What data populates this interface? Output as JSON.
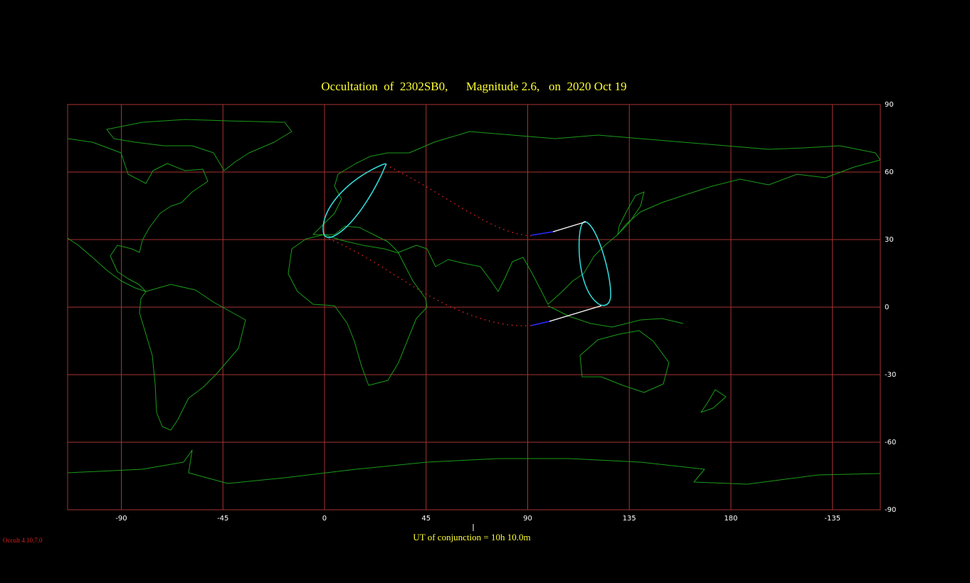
{
  "title": "Occultation  of  2302SB0,      Magnitude 2.6,   on  2020 Oct 19",
  "map": {
    "lon_ticks": [
      -90,
      -45,
      0,
      45,
      90,
      135,
      180,
      -135
    ],
    "lat_ticks": [
      90,
      60,
      30,
      0,
      -30,
      -60,
      -90
    ]
  },
  "footer": "UT of conjunction = 10h 10.0m",
  "version": "Occult 4.10.7.0"
}
